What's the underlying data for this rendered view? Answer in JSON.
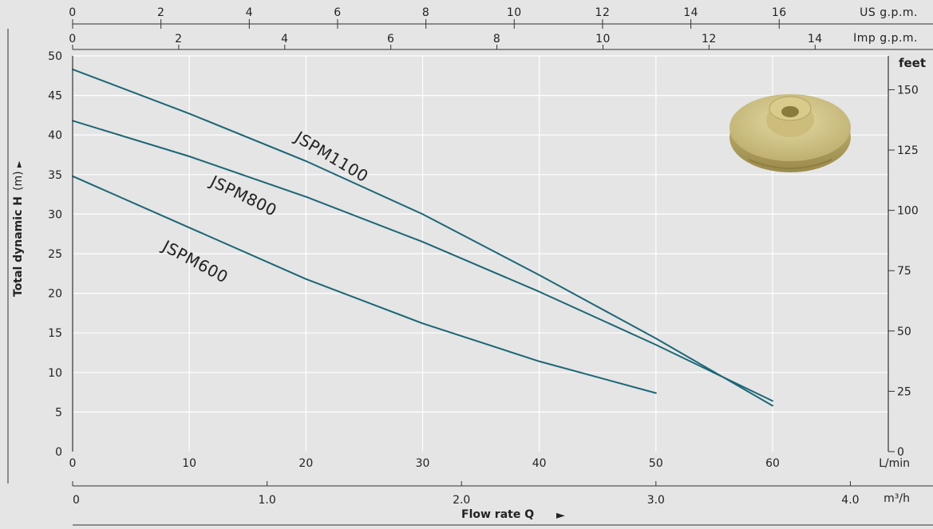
{
  "chart_data": {
    "type": "line",
    "title": "",
    "xlabel": "Flow rate Q",
    "x_unit": "L/min",
    "ylabel": "Total dynamic H",
    "y_unit": "(m)",
    "y2_unit": "feet",
    "xlim": [
      0,
      60
    ],
    "ylim": [
      0,
      50
    ],
    "x_ticks": [
      0,
      10,
      20,
      30,
      40,
      50,
      60
    ],
    "y_ticks": [
      0,
      5,
      10,
      15,
      20,
      25,
      30,
      35,
      40,
      45,
      50
    ],
    "y2_ticks": [
      0,
      25,
      50,
      75,
      100,
      125,
      150
    ],
    "grid": true,
    "series": [
      {
        "name": "JSPM1100",
        "x": [
          0,
          10,
          20,
          30,
          40,
          50,
          60
        ],
        "y": [
          48.3,
          42.7,
          36.7,
          30.0,
          22.3,
          14.3,
          5.8
        ]
      },
      {
        "name": "JSPM800",
        "x": [
          0,
          10,
          20,
          30,
          40,
          50,
          60
        ],
        "y": [
          41.8,
          37.3,
          32.2,
          26.5,
          20.2,
          13.5,
          6.4
        ]
      },
      {
        "name": "JSPM600",
        "x": [
          0,
          10,
          20,
          30,
          40,
          50
        ],
        "y": [
          34.8,
          28.3,
          21.8,
          16.2,
          11.4,
          7.4
        ]
      }
    ],
    "secondary_axes": {
      "us_gpm": {
        "label": "US g.p.m.",
        "ticks": [
          0,
          2,
          4,
          6,
          8,
          10,
          12,
          14,
          16
        ]
      },
      "imp_gpm": {
        "label": "Imp g.p.m.",
        "ticks": [
          0,
          2,
          4,
          6,
          8,
          10,
          12,
          14
        ]
      },
      "m3h": {
        "label": "m³/h",
        "ticks": [
          "0",
          "1.0",
          "2.0",
          "3.0",
          "4.0"
        ]
      }
    }
  },
  "colors": {
    "line": "#1d6577",
    "grid": "#ffffff",
    "axis": "#333333",
    "background": "#e4e5e4",
    "impeller": "#d8c98a"
  },
  "image": {
    "icon": "impeller-icon"
  }
}
